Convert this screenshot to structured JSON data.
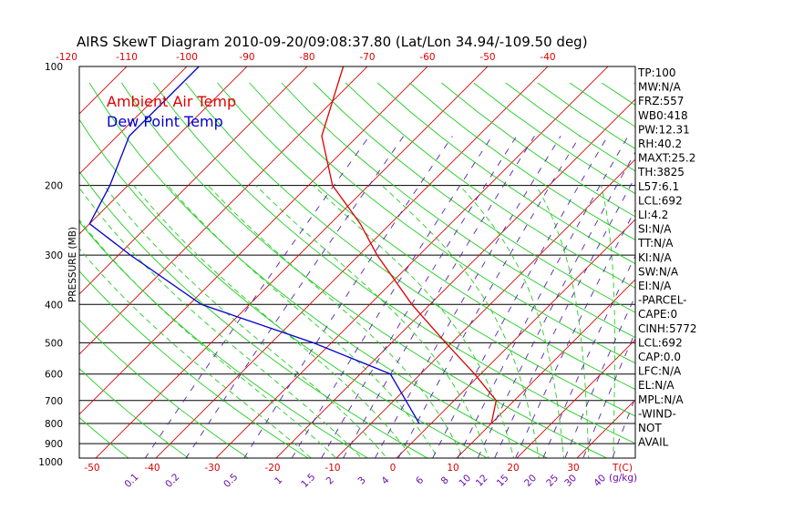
{
  "chart_data": {
    "type": "line",
    "title": "AIRS SkewT Diagram 2010-09-20/09:08:37.80 (Lat/Lon 34.94/-109.50 deg)",
    "ylabel": "PRESSURE (MB)",
    "xlabel": "T(C)",
    "mixing_ratio_unit": "(g/kg)",
    "legend": [
      "Ambient Air Temp",
      "Dew Point Temp"
    ],
    "pressure_ticks": [
      100,
      200,
      300,
      400,
      500,
      600,
      700,
      800,
      900,
      1000
    ],
    "bottom_temp_ticks": [
      -50,
      -40,
      -30,
      -20,
      -10,
      0,
      10,
      20,
      30
    ],
    "top_temp_ticks": [
      -120,
      -110,
      -100,
      -90,
      -80,
      -70,
      -60,
      -50,
      -40
    ],
    "mixing_ratio_labels": [
      "0.1",
      "0.2",
      "0.5",
      "1",
      "1.5",
      "2",
      "3",
      "4",
      "6",
      "8",
      "10",
      "12",
      "15",
      "20",
      "25",
      "30",
      "40"
    ],
    "series": [
      {
        "name": "Ambient Air Temp",
        "color": "#dd0000",
        "pressure": [
          100,
          150,
          200,
          250,
          300,
          400,
          500,
          600,
          700,
          800
        ],
        "temperature": [
          -74,
          -66,
          -56,
          -45,
          -37,
          -23,
          -11,
          -1,
          7,
          10
        ]
      },
      {
        "name": "Dew Point Temp",
        "color": "#0000cc",
        "pressure": [
          100,
          150,
          200,
          250,
          300,
          400,
          500,
          600,
          800
        ],
        "temperature": [
          -98,
          -98,
          -93,
          -90,
          -78,
          -58,
          -33,
          -15,
          -2
        ]
      }
    ],
    "indices": [
      "TP:100",
      "MW:N/A",
      "FRZ:557",
      "WB0:418",
      "PW:12.31",
      "RH:40.2",
      "MAXT:25.2",
      "TH:3825",
      "L57:6.1",
      "LCL:692",
      "LI:4.2",
      "SI:N/A",
      "TT:N/A",
      "KI:N/A",
      "SW:N/A",
      "EI:N/A",
      "-PARCEL-",
      "CAPE:0",
      "CINH:5772",
      "LCL:692",
      "CAP:0.0",
      "LFC:N/A",
      "EL:N/A",
      "MPL:N/A",
      "-WIND-",
      "NOT",
      "AVAIL"
    ],
    "colors": {
      "isotherm": "#dd0000",
      "dry_adiabat": "#22cc22",
      "moist_adiabat": "#22cc22",
      "mixing_ratio": "#5522aa",
      "temp_profile": "#dd0000",
      "dew_profile": "#0000cc",
      "mixing_ratio_labels": "#6a0dad",
      "temp_tick_labels": "#dd0000"
    },
    "grid": true
  }
}
